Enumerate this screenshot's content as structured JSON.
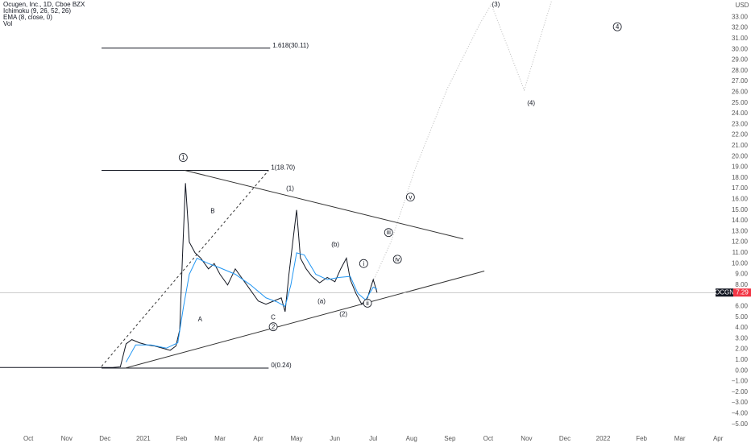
{
  "chart_data": {
    "type": "line",
    "currency": "USD",
    "indicators": [
      "Ichimoku (9, 26, 52, 26)",
      "Vol"
    ],
    "series": [
      {
        "name": "Ocugen, Inc., 1D, Cboe BZX",
        "color": "#131722",
        "x": [
          -0.74,
          0,
          1,
          1.8,
          2.2,
          2.4,
          2.55,
          2.7,
          2.9,
          3.1,
          3.3,
          3.5,
          3.7,
          3.85,
          3.95,
          4.02,
          4.1,
          4.2,
          4.35,
          4.5,
          4.7,
          4.85,
          5.0,
          5.2,
          5.4,
          5.6,
          5.8,
          6.0,
          6.2,
          6.4,
          6.6,
          6.7,
          6.8,
          6.9,
          7.0,
          7.1,
          7.25,
          7.4,
          7.6,
          7.8,
          8.0,
          8.15,
          8.3,
          8.4,
          8.55,
          8.7,
          8.85,
          9.0,
          9.1
        ],
        "values": [
          0.3,
          0.3,
          0.3,
          0.3,
          0.3,
          0.35,
          2.5,
          2.9,
          2.6,
          2.4,
          2.3,
          2.1,
          1.9,
          2.3,
          3.8,
          10.5,
          17.5,
          12,
          11,
          10.5,
          9.5,
          10,
          9,
          8,
          9.5,
          8.5,
          7.5,
          6.5,
          6.2,
          6.5,
          6.8,
          5.5,
          9,
          12,
          15,
          10.5,
          9.5,
          8.8,
          8.2,
          8.7,
          8.3,
          9.5,
          10.5,
          8.5,
          7.2,
          6.2,
          6.8,
          8.5,
          7.29
        ]
      },
      {
        "name": "EMA (8, close, 0)",
        "color": "#2196f3",
        "x": [
          2.55,
          2.8,
          3.2,
          3.6,
          3.9,
          4.05,
          4.2,
          4.4,
          4.7,
          5.0,
          5.4,
          5.8,
          6.2,
          6.5,
          6.7,
          6.85,
          7.0,
          7.2,
          7.5,
          7.8,
          8.1,
          8.4,
          8.6,
          8.8,
          9.0,
          9.1
        ],
        "values": [
          0.8,
          2.4,
          2.4,
          2.1,
          2.6,
          6,
          9,
          10.5,
          10,
          9.6,
          9,
          8,
          6.8,
          6.4,
          6,
          8,
          11,
          10.8,
          9,
          8.5,
          8.7,
          8.8,
          7.2,
          6.6,
          7.8,
          7.6
        ]
      }
    ],
    "last_price": {
      "symbol": "OCGN",
      "value": 7.29,
      "color": "#f23645"
    },
    "fib_levels": [
      {
        "label": "1.618(30.11)",
        "value": 30.11,
        "x": [
          1.91,
          6.31
        ]
      },
      {
        "label": "1(18.70)",
        "value": 18.7,
        "x": [
          1.91,
          6.27
        ]
      },
      {
        "label": "0(0.24)",
        "value": 0.24,
        "x": [
          1.91,
          6.27
        ]
      }
    ],
    "trendlines": [
      {
        "x": [
          4.08,
          11.35
        ],
        "y": [
          18.7,
          12.3
        ],
        "style": "solid"
      },
      {
        "x": [
          2.52,
          11.9
        ],
        "y": [
          0.23,
          9.3
        ],
        "style": "solid"
      },
      {
        "x": [
          1.91,
          6.27
        ],
        "y": [
          0.4,
          18.7
        ],
        "style": "dashed"
      },
      {
        "x": [
          8.94,
          9.46,
          10.09,
          10.93,
          11.77,
          12.08,
          12.94,
          13.66
        ],
        "y": [
          7.9,
          12,
          18.8,
          26.3,
          32.3,
          34.2,
          26.2,
          34.6
        ],
        "style": "dotted"
      }
    ],
    "annotations": [
      {
        "text": "1",
        "x": 4.04,
        "y": 19.9,
        "circled": true
      },
      {
        "text": "B",
        "x": 4.81,
        "y": 14.9,
        "circled": false
      },
      {
        "text": "A",
        "x": 4.48,
        "y": 4.8,
        "circled": false
      },
      {
        "text": "C",
        "x": 6.39,
        "y": 5.0,
        "circled": false
      },
      {
        "text": "2",
        "x": 6.39,
        "y": 4.1,
        "circled": true
      },
      {
        "text": "(1)",
        "x": 6.83,
        "y": 17.0,
        "circled": false
      },
      {
        "text": "(b)",
        "x": 8.01,
        "y": 11.8,
        "circled": false
      },
      {
        "text": "(a)",
        "x": 7.65,
        "y": 6.5,
        "circled": false
      },
      {
        "text": "(2)",
        "x": 8.22,
        "y": 5.3,
        "circled": false
      },
      {
        "text": "i",
        "x": 8.75,
        "y": 10.0,
        "circled": true
      },
      {
        "text": "ii",
        "x": 8.85,
        "y": 6.3,
        "circled": true
      },
      {
        "text": "iii",
        "x": 9.4,
        "y": 12.9,
        "circled": true
      },
      {
        "text": "iv",
        "x": 9.63,
        "y": 10.4,
        "circled": true
      },
      {
        "text": "v",
        "x": 9.97,
        "y": 16.2,
        "circled": true
      },
      {
        "text": "(3)",
        "x": 12.2,
        "y": 34.2,
        "circled": false
      },
      {
        "text": "(4)",
        "x": 13.12,
        "y": 25.0,
        "circled": false
      },
      {
        "text": "4",
        "x": 15.37,
        "y": 32.1,
        "circled": true
      }
    ],
    "xlim": [
      -0.74,
      18.29
    ],
    "xticks": [
      {
        "value": 0,
        "label": "Oct"
      },
      {
        "value": 1,
        "label": "Nov"
      },
      {
        "value": 2,
        "label": "Dec"
      },
      {
        "value": 3,
        "label": "2021"
      },
      {
        "value": 4,
        "label": "Feb"
      },
      {
        "value": 5,
        "label": "Mar"
      },
      {
        "value": 6,
        "label": "Apr"
      },
      {
        "value": 7,
        "label": "May"
      },
      {
        "value": 8,
        "label": "Jun"
      },
      {
        "value": 9,
        "label": "Jul"
      },
      {
        "value": 10,
        "label": "Aug"
      },
      {
        "value": 11,
        "label": "Sep"
      },
      {
        "value": 12,
        "label": "Oct"
      },
      {
        "value": 13,
        "label": "Nov"
      },
      {
        "value": 14,
        "label": "Dec"
      },
      {
        "value": 15,
        "label": "2022"
      },
      {
        "value": 16,
        "label": "Feb"
      },
      {
        "value": 17,
        "label": "Mar"
      },
      {
        "value": 18,
        "label": "Apr"
      }
    ],
    "ylim": [
      -6.0,
      34.6
    ],
    "yticks": [
      {
        "value": -5,
        "label": "−5.00"
      },
      {
        "value": -4,
        "label": "−4.00"
      },
      {
        "value": -3,
        "label": "−3.00"
      },
      {
        "value": -2,
        "label": "−2.00"
      },
      {
        "value": -1,
        "label": "−1.00"
      },
      {
        "value": 0,
        "label": "0.00"
      },
      {
        "value": 1,
        "label": "1.00"
      },
      {
        "value": 2,
        "label": "2.00"
      },
      {
        "value": 3,
        "label": "3.00"
      },
      {
        "value": 4,
        "label": "4.00"
      },
      {
        "value": 5,
        "label": "5.00"
      },
      {
        "value": 6,
        "label": "6.00"
      },
      {
        "value": 8,
        "label": "8.00"
      },
      {
        "value": 9,
        "label": "9.00"
      },
      {
        "value": 10,
        "label": "10.00"
      },
      {
        "value": 11,
        "label": "11.00"
      },
      {
        "value": 12,
        "label": "12.00"
      },
      {
        "value": 13,
        "label": "13.00"
      },
      {
        "value": 14,
        "label": "14.00"
      },
      {
        "value": 15,
        "label": "15.00"
      },
      {
        "value": 16,
        "label": "16.00"
      },
      {
        "value": 17,
        "label": "17.00"
      },
      {
        "value": 18,
        "label": "18.00"
      },
      {
        "value": 19,
        "label": "19.00"
      },
      {
        "value": 20,
        "label": "20.00"
      },
      {
        "value": 21,
        "label": "21.00"
      },
      {
        "value": 22,
        "label": "22.00"
      },
      {
        "value": 23,
        "label": "23.00"
      },
      {
        "value": 24,
        "label": "24.00"
      },
      {
        "value": 25,
        "label": "25.00"
      },
      {
        "value": 26,
        "label": "26.00"
      },
      {
        "value": 27,
        "label": "27.00"
      },
      {
        "value": 28,
        "label": "28.00"
      },
      {
        "value": 29,
        "label": "29.00"
      },
      {
        "value": 30,
        "label": "30.00"
      },
      {
        "value": 31,
        "label": "31.00"
      },
      {
        "value": 32,
        "label": "32.00"
      },
      {
        "value": 33,
        "label": "33.00"
      }
    ],
    "grid": false
  }
}
